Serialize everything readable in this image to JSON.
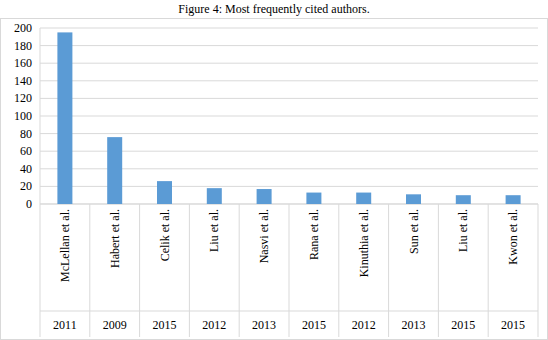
{
  "chart_data": {
    "type": "bar",
    "title": "Figure 4: Most frequently cited authors.",
    "categories": [
      "McLellan et al.",
      "Habert et al.",
      "Celik et al.",
      "Liu et al.",
      "Nasvi et al.",
      "Rana et al.",
      "Kinuthia et al.",
      "Sun et al.",
      "Liu et al.",
      "Kwon et al."
    ],
    "category_years": [
      "2011",
      "2009",
      "2015",
      "2012",
      "2013",
      "2015",
      "2012",
      "2013",
      "2015",
      "2015"
    ],
    "values": [
      195,
      76,
      26,
      18,
      17,
      13,
      13,
      11,
      10,
      10
    ],
    "color": "#5b9bd5",
    "ylim": [
      0,
      200
    ],
    "yticks": [
      0,
      20,
      40,
      60,
      80,
      100,
      120,
      140,
      160,
      180,
      200
    ],
    "grid": true
  }
}
